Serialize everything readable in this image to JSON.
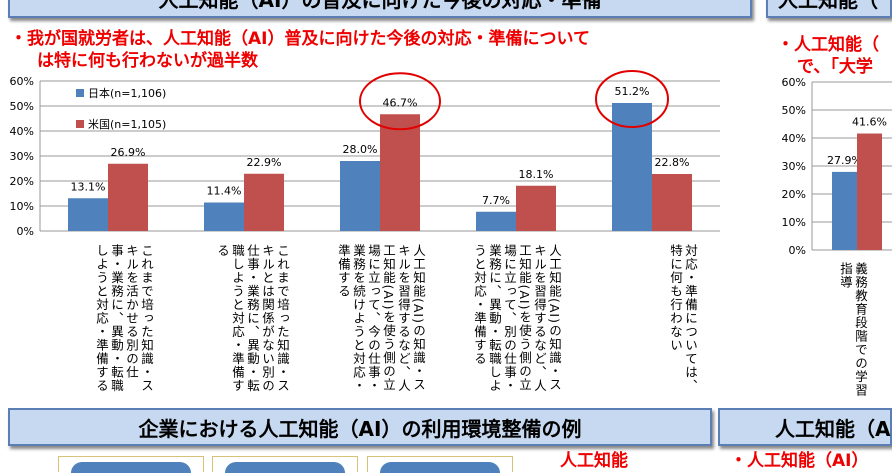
{
  "header_left": "人工知能（AI）の普及に向けた今後の対応・準備",
  "header_right": "人工知能（",
  "subtitle_left": [
    "・我が国就労者は、人工知能（AI）普及に向けた今後の対応・準備について",
    "は特に何も行わないが過半数"
  ],
  "subtitle_right": [
    "・人工知能（",
    "で、「大学"
  ],
  "bottom_header_left": "企業における人工知能（AI）の利用環境整備の例",
  "bottom_header_right": "人工知能（A",
  "bottom_red_left": "人工知能",
  "bottom_red_right": "・人工知能（AI）",
  "colors": {
    "japan": "#4f81bd",
    "us": "#c0504d",
    "highlight": "#e00000"
  },
  "chart_data": [
    {
      "type": "bar",
      "ylim": [
        0,
        60
      ],
      "yticks": [
        "0%",
        "10%",
        "20%",
        "30%",
        "40%",
        "50%",
        "60%"
      ],
      "grid": true,
      "legend": "top-left",
      "categories": [
        "これまで培った知識・スキルを活かせる別の仕事・業務に、異動・転職しようと対応・準備する",
        "これまで培った知識・スキルとは関係がない別の仕事・業務に、異動・転職しようと対応・準備する",
        "人工知能(AI)の知識・スキルを習得するなど、人工知能(AI)を使う側の立場に立って、今の仕事・業務を続けようと対応・準備する",
        "人工知能(AI)の知識・スキルを習得するなど、人工知能(AI)を使う側の立場に立って、別の仕事・業務に、異動・転職しようと対応・準備する",
        "対応・準備については、特に何も行わない"
      ],
      "series": [
        {
          "name": "日本(n=1,106)",
          "values": [
            13.1,
            11.4,
            28.0,
            7.7,
            51.2
          ],
          "labels": [
            "13.1%",
            "11.4%",
            "28.0%",
            "7.7%",
            "51.2%"
          ]
        },
        {
          "name": "米国(n=1,105)",
          "values": [
            26.9,
            22.9,
            46.7,
            18.1,
            22.8
          ],
          "labels": [
            "26.9%",
            "22.9%",
            "46.7%",
            "18.1%",
            "22.8%"
          ]
        }
      ],
      "highlighted": [
        "米国 46.7%",
        "日本 51.2%"
      ]
    },
    {
      "type": "bar",
      "ylim": [
        0,
        60
      ],
      "yticks": [
        "0%",
        "10%",
        "20%",
        "30%",
        "40%",
        "50%",
        "60%"
      ],
      "grid": true,
      "categories": [
        "義務教育段階での学習指導"
      ],
      "series": [
        {
          "values": [
            27.9
          ],
          "labels": [
            "27.9%"
          ]
        },
        {
          "values": [
            41.6
          ],
          "labels": [
            "41.6%"
          ]
        }
      ]
    }
  ]
}
